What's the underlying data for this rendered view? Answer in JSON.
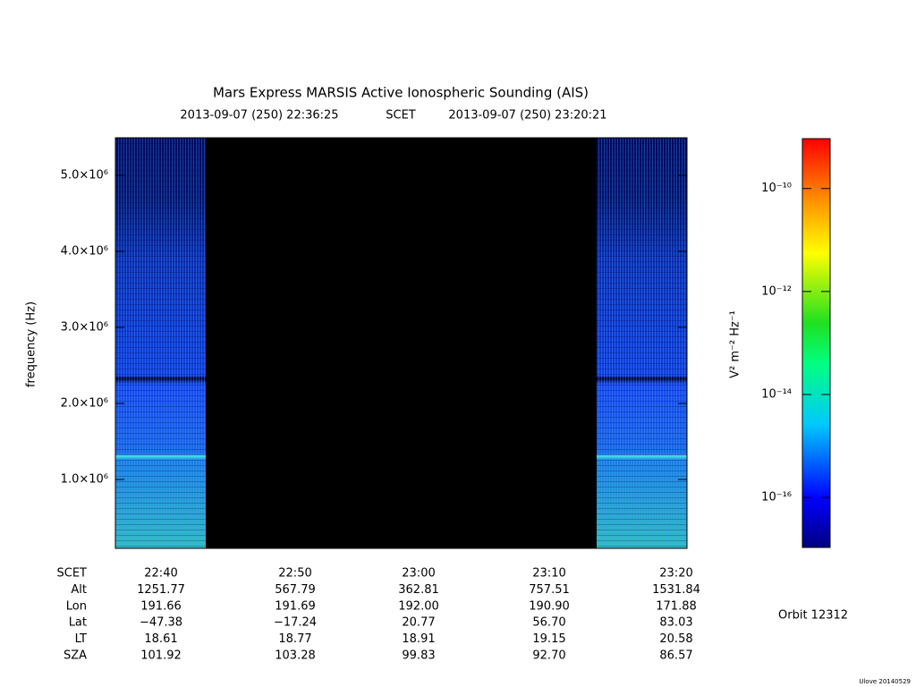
{
  "chart_data": {
    "type": "spectrogram",
    "title": "Mars Express MARSIS Active Ionospheric Sounding (AIS)",
    "start_time": "2013-09-07 (250) 22:36:25",
    "time_system": "SCET",
    "end_time": "2013-09-07 (250) 23:20:21",
    "ylabel": "frequency (Hz)",
    "ylim": [
      94000,
      5494000
    ],
    "yticks": [
      {
        "value": 1000000,
        "label": "1.0×10⁶"
      },
      {
        "value": 2000000,
        "label": "2.0×10⁶"
      },
      {
        "value": 3000000,
        "label": "3.0×10⁶"
      },
      {
        "value": 4000000,
        "label": "4.0×10⁶"
      },
      {
        "value": 5000000,
        "label": "5.0×10⁶"
      }
    ],
    "colorbar": {
      "label": "V² m⁻² Hz⁻¹",
      "log": true,
      "lim": [
        1.07e-17,
        9.3e-10
      ],
      "ticks": [
        {
          "value": 1e-16,
          "label": "10⁻¹⁶"
        },
        {
          "value": 1e-14,
          "label": "10⁻¹⁴"
        },
        {
          "value": 1e-12,
          "label": "10⁻¹²"
        },
        {
          "value": 1e-10,
          "label": "10⁻¹⁰"
        }
      ]
    },
    "ephemeris": [
      {
        "label": "SCET",
        "values": [
          "22:40",
          "22:50",
          "23:00",
          "23:10",
          "23:20"
        ]
      },
      {
        "label": "Alt",
        "values": [
          "1251.77",
          "567.79",
          "362.81",
          "757.51",
          "1531.84"
        ]
      },
      {
        "label": "Lon",
        "values": [
          "191.66",
          "191.69",
          "192.00",
          "190.90",
          "171.88"
        ]
      },
      {
        "label": "Lat",
        "values": [
          "−47.38",
          "−17.24",
          "20.77",
          "56.70",
          "83.03"
        ]
      },
      {
        "label": "LT",
        "values": [
          "18.61",
          "18.77",
          "18.91",
          "19.15",
          "20.58"
        ]
      },
      {
        "label": "SZA",
        "values": [
          "101.92",
          "103.28",
          "99.83",
          "92.70",
          "86.57"
        ]
      }
    ],
    "orbit": "Orbit 12312",
    "footer": "Ulove 20140529"
  }
}
